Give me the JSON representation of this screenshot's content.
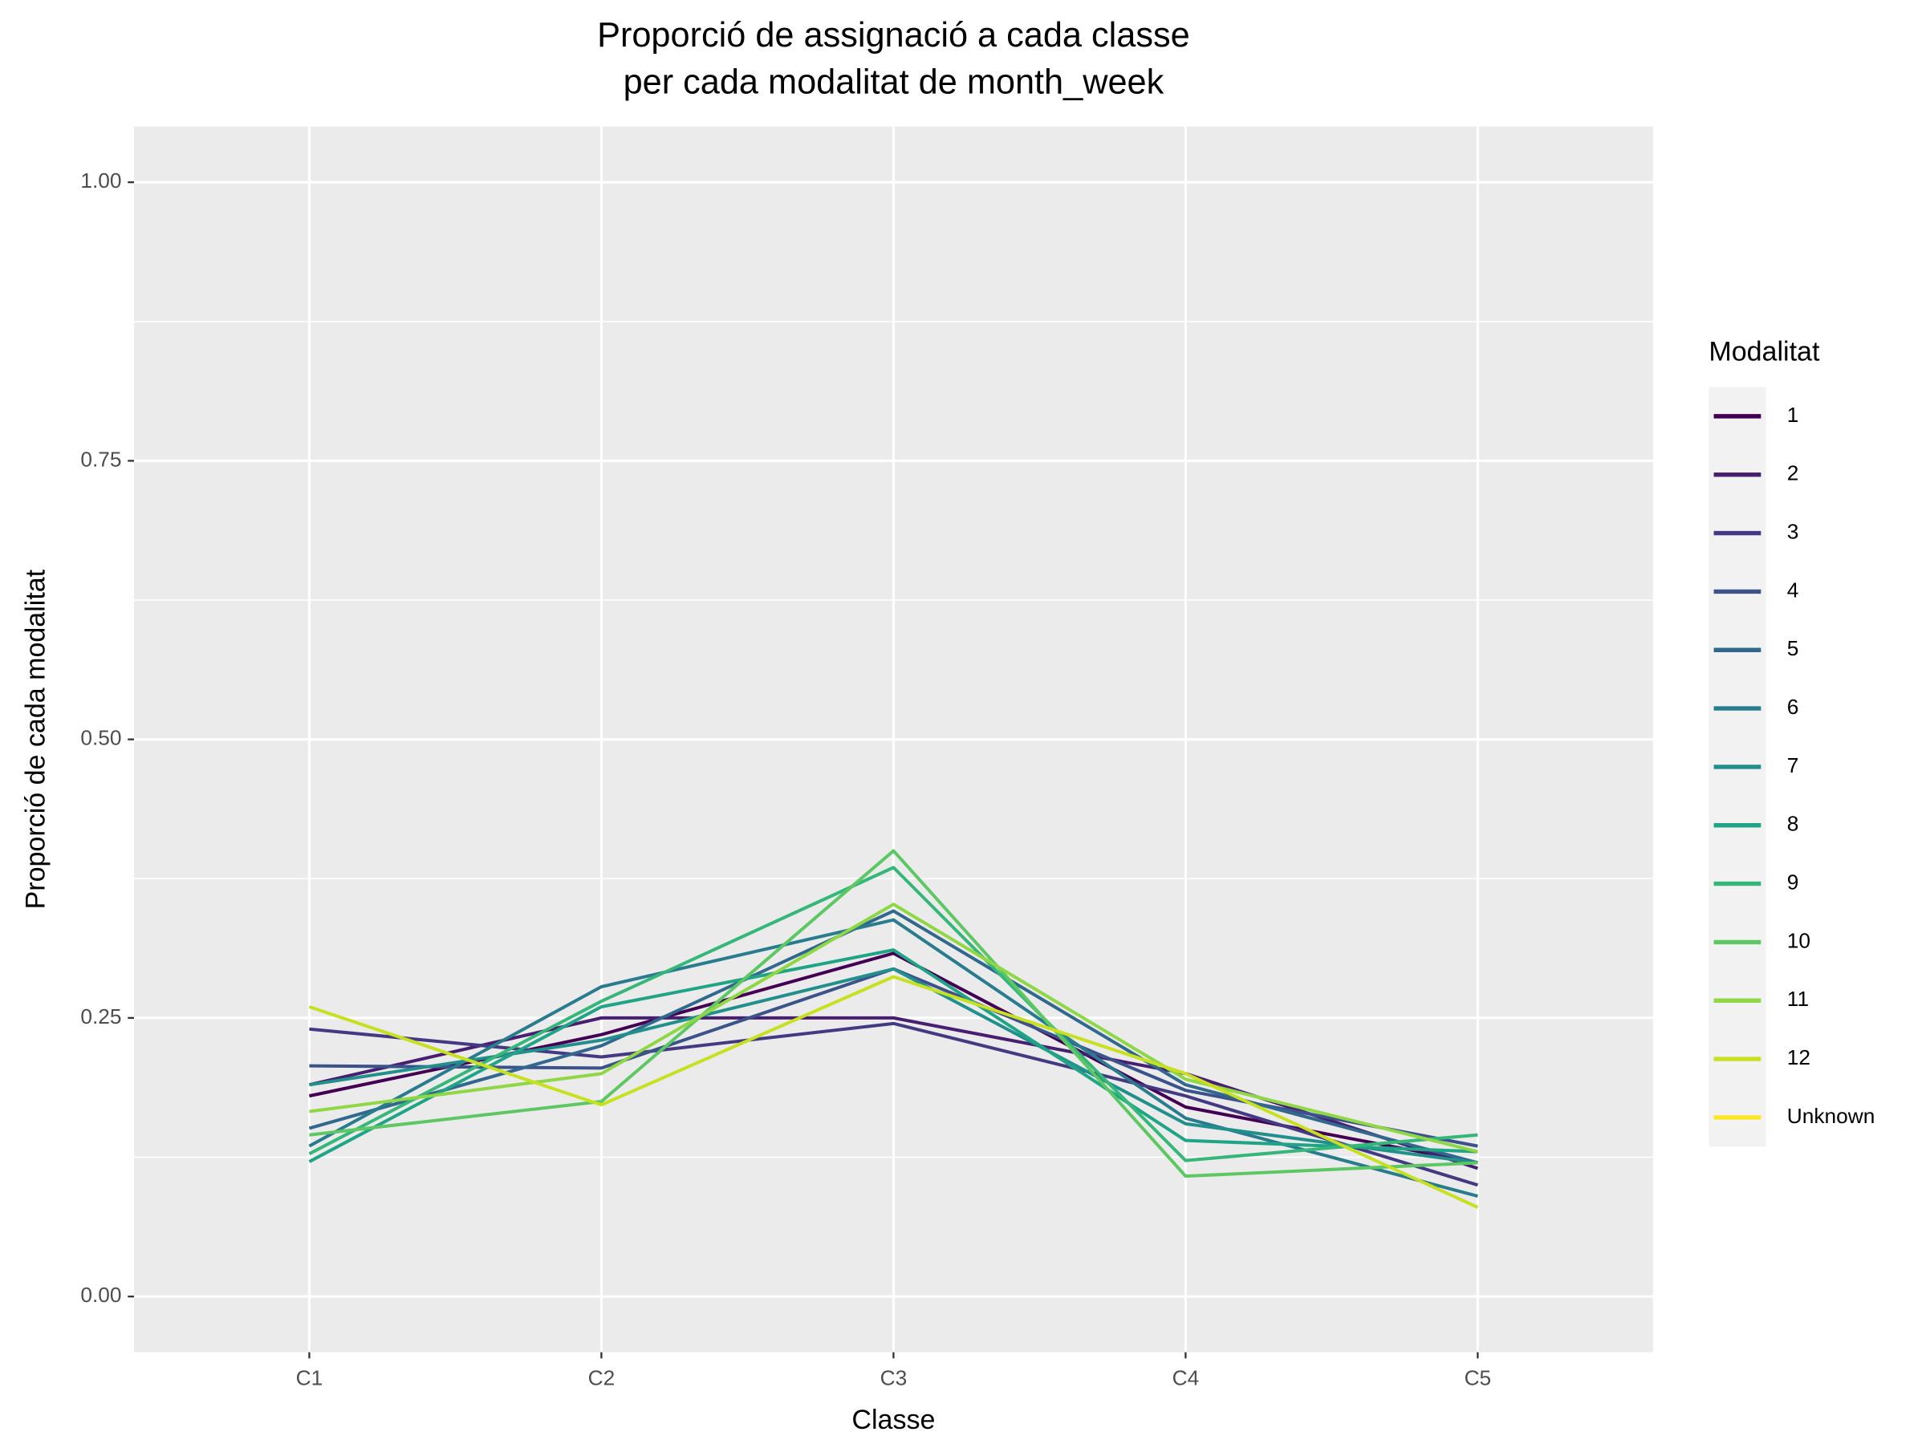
{
  "chart_data": {
    "type": "line",
    "title": [
      "Proporció de assignació a cada classe",
      "per cada modalitat de month_week"
    ],
    "x_label": "Classe",
    "y_label": "Proporció de cada modalitat",
    "legend_title": "Modalitat",
    "legend": "right",
    "grid": true,
    "categories": [
      "C1",
      "C2",
      "C3",
      "C4",
      "C5"
    ],
    "ylim": [
      -0.05,
      1.05
    ],
    "yticks": [
      {
        "value": 0,
        "label": "0.00"
      },
      {
        "value": 0.25,
        "label": "0.25"
      },
      {
        "value": 0.5,
        "label": "0.50"
      },
      {
        "value": 0.75,
        "label": "0.75"
      },
      {
        "value": 1,
        "label": "1.00"
      }
    ],
    "series": [
      {
        "name": "1",
        "color": "#440154",
        "values": [
          0.18,
          0.235,
          0.308,
          0.17,
          0.12
        ]
      },
      {
        "name": "2",
        "color": "#481F70",
        "values": [
          0.19,
          0.25,
          0.25,
          0.2,
          0.115
        ]
      },
      {
        "name": "3",
        "color": "#443A83",
        "values": [
          0.24,
          0.215,
          0.245,
          0.18,
          0.1
        ]
      },
      {
        "name": "4",
        "color": "#3B528B",
        "values": [
          0.207,
          0.205,
          0.294,
          0.185,
          0.135
        ]
      },
      {
        "name": "5",
        "color": "#31688E",
        "values": [
          0.151,
          0.225,
          0.346,
          0.19,
          0.12
        ]
      },
      {
        "name": "6",
        "color": "#287C8E",
        "values": [
          0.135,
          0.278,
          0.338,
          0.16,
          0.09
        ]
      },
      {
        "name": "7",
        "color": "#21908C",
        "values": [
          0.19,
          0.23,
          0.294,
          0.155,
          0.12
        ]
      },
      {
        "name": "8",
        "color": "#20A486",
        "values": [
          0.121,
          0.26,
          0.311,
          0.14,
          0.13
        ]
      },
      {
        "name": "9",
        "color": "#35B779",
        "values": [
          0.128,
          0.265,
          0.385,
          0.122,
          0.145
        ]
      },
      {
        "name": "10",
        "color": "#5DC863",
        "values": [
          0.145,
          0.175,
          0.4,
          0.108,
          0.12
        ]
      },
      {
        "name": "11",
        "color": "#8FD744",
        "values": [
          0.166,
          0.2,
          0.352,
          0.195,
          0.13
        ]
      },
      {
        "name": "12",
        "color": "#C7E020",
        "values": [
          0.26,
          0.172,
          0.287,
          0.2,
          0.08
        ]
      },
      {
        "name": "Unknown",
        "color": "#FDE725",
        "values": [
          null,
          null,
          null,
          null,
          null
        ]
      }
    ]
  }
}
